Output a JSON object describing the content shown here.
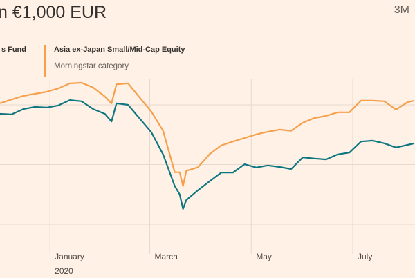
{
  "header": {
    "title": "n €1,000 EUR",
    "range_selector": "3M"
  },
  "legend": {
    "fund_label": "s Fund",
    "category_label": "Asia ex-Japan Small/Mid-Cap Equity",
    "category_sublabel": "Morningstar category"
  },
  "colors": {
    "background": "#fff1e5",
    "fund": "#0d7680",
    "category": "#f6a04d",
    "grid": "#e6d9ce"
  },
  "chart_data": {
    "type": "line",
    "title": "n €1,000 EUR",
    "xlabel": "",
    "ylabel": "",
    "x_ticks": [
      {
        "date": "2020-01-01",
        "label": "January",
        "sublabel": "2020"
      },
      {
        "date": "2020-03-01",
        "label": "March"
      },
      {
        "date": "2020-05-01",
        "label": "May"
      },
      {
        "date": "2020-07-01",
        "label": "July"
      }
    ],
    "xlim": [
      "2019-12-02",
      "2020-08-07"
    ],
    "ylim": [
      780,
      1330
    ],
    "y_gridlines": [
      800,
      1000,
      1200
    ],
    "grid": true,
    "legend_placement": "top",
    "x": [
      "2019-12-02",
      "2019-12-09",
      "2019-12-16",
      "2019-12-23",
      "2019-12-30",
      "2020-01-06",
      "2020-01-13",
      "2020-01-20",
      "2020-01-27",
      "2020-02-03",
      "2020-02-07",
      "2020-02-10",
      "2020-02-17",
      "2020-02-24",
      "2020-03-02",
      "2020-03-09",
      "2020-03-16",
      "2020-03-19",
      "2020-03-21",
      "2020-03-23",
      "2020-03-30",
      "2020-04-06",
      "2020-04-13",
      "2020-04-20",
      "2020-04-27",
      "2020-05-04",
      "2020-05-11",
      "2020-05-18",
      "2020-05-25",
      "2020-06-01",
      "2020-06-08",
      "2020-06-15",
      "2020-06-22",
      "2020-06-29",
      "2020-07-06",
      "2020-07-13",
      "2020-07-20",
      "2020-07-27",
      "2020-08-03",
      "2020-08-07"
    ],
    "series": [
      {
        "name": "s Fund",
        "color": "#0d7680",
        "values": [
          1170,
          1168,
          1186,
          1193,
          1191,
          1198,
          1216,
          1212,
          1186,
          1170,
          1144,
          1205,
          1200,
          1154,
          1108,
          1034,
          928,
          900,
          851,
          881,
          914,
          944,
          973,
          973,
          1001,
          990,
          997,
          992,
          985,
          1024,
          1020,
          1017,
          1034,
          1040,
          1077,
          1080,
          1071,
          1057,
          1066,
          1071
        ]
      },
      {
        "name": "Asia ex-Japan Small/Mid-Cap Equity",
        "color": "#f6a04d",
        "values": [
          1205,
          1218,
          1230,
          1237,
          1244,
          1255,
          1272,
          1274,
          1258,
          1228,
          1205,
          1269,
          1272,
          1224,
          1177,
          1113,
          974,
          974,
          928,
          979,
          991,
          1035,
          1064,
          1077,
          1089,
          1101,
          1110,
          1117,
          1113,
          1140,
          1156,
          1163,
          1175,
          1175,
          1214,
          1214,
          1212,
          1184,
          1209,
          1214
        ]
      }
    ]
  }
}
